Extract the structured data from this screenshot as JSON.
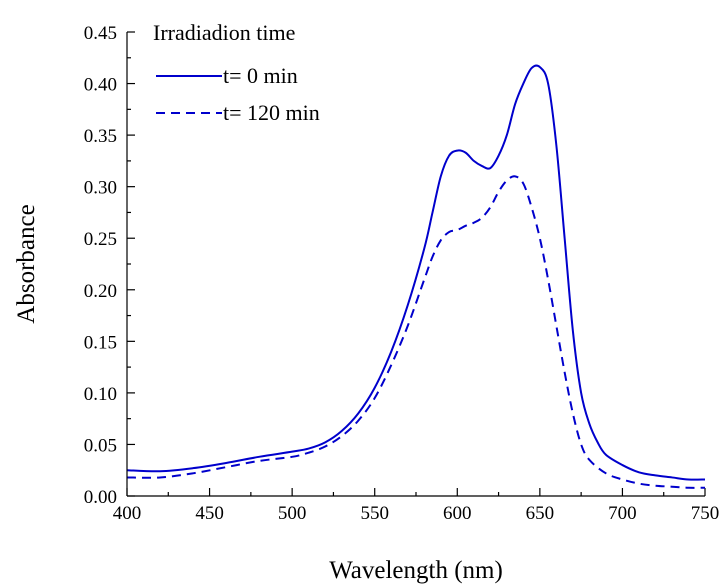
{
  "chart_data": {
    "type": "line",
    "title": "",
    "xlabel": "Wavelength (nm)",
    "ylabel": "Absorbance",
    "xlim": [
      400,
      750
    ],
    "ylim": [
      0,
      0.45
    ],
    "x_ticks": [
      400,
      450,
      500,
      550,
      600,
      650,
      700,
      750
    ],
    "y_ticks": [
      "0.00",
      "0.05",
      "0.10",
      "0.15",
      "0.20",
      "0.25",
      "0.30",
      "0.35",
      "0.40",
      "0.45"
    ],
    "grid": false,
    "legend": {
      "title": "Irradiadion time",
      "placement": "top-left",
      "entries": [
        "t= 0 min",
        "t= 120 min"
      ]
    },
    "colors": {
      "series": "#0000cc",
      "axis": "#000000"
    },
    "series": [
      {
        "name": "t= 0 min",
        "style": "solid",
        "x": [
          400,
          420,
          440,
          460,
          480,
          500,
          510,
          520,
          530,
          540,
          550,
          560,
          570,
          580,
          585,
          590,
          595,
          600,
          605,
          610,
          615,
          620,
          625,
          630,
          635,
          640,
          645,
          650,
          655,
          660,
          665,
          670,
          675,
          680,
          685,
          690,
          700,
          710,
          720,
          730,
          740,
          750
        ],
        "y": [
          0.025,
          0.024,
          0.027,
          0.032,
          0.038,
          0.043,
          0.046,
          0.052,
          0.063,
          0.08,
          0.105,
          0.14,
          0.185,
          0.24,
          0.275,
          0.31,
          0.33,
          0.335,
          0.333,
          0.325,
          0.32,
          0.318,
          0.33,
          0.35,
          0.38,
          0.4,
          0.415,
          0.416,
          0.4,
          0.34,
          0.25,
          0.16,
          0.1,
          0.07,
          0.052,
          0.04,
          0.03,
          0.023,
          0.02,
          0.018,
          0.016,
          0.016
        ]
      },
      {
        "name": "t= 120 min",
        "style": "dashed",
        "x": [
          400,
          420,
          440,
          460,
          480,
          500,
          510,
          520,
          530,
          540,
          550,
          560,
          570,
          580,
          585,
          590,
          595,
          600,
          605,
          610,
          615,
          620,
          625,
          630,
          635,
          640,
          645,
          650,
          655,
          660,
          665,
          670,
          675,
          680,
          690,
          700,
          710,
          720,
          730,
          740,
          750
        ],
        "y": [
          0.018,
          0.018,
          0.022,
          0.028,
          0.034,
          0.038,
          0.042,
          0.048,
          0.058,
          0.073,
          0.095,
          0.127,
          0.165,
          0.21,
          0.232,
          0.248,
          0.256,
          0.258,
          0.262,
          0.265,
          0.27,
          0.28,
          0.295,
          0.306,
          0.31,
          0.303,
          0.28,
          0.25,
          0.21,
          0.165,
          0.12,
          0.08,
          0.05,
          0.035,
          0.022,
          0.016,
          0.012,
          0.01,
          0.009,
          0.008,
          0.008
        ]
      }
    ]
  }
}
